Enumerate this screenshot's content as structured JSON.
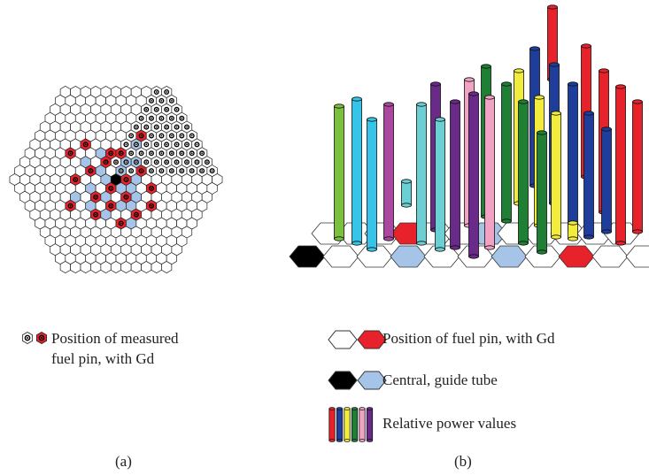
{
  "colors": {
    "red": "#e8222a",
    "blue": "#1f3e9c",
    "yellow": "#f2ec3c",
    "green": "#1e7f35",
    "pink": "#f2a3c3",
    "purple": "#6a2a8a",
    "cyan": "#36c4e8",
    "teal": "#6ccfd3",
    "lime": "#7cc040",
    "magenta": "#a9489e",
    "light_blue": "#a5c4e8",
    "black": "#000000",
    "white": "#ffffff"
  },
  "panel_a": {
    "label": "(a)",
    "legend_text_line1": "Position of measured",
    "legend_text_line2": "fuel pin, with Gd",
    "legend_icons": [
      "measured-pin-icon",
      "measured-pin-with-gd-icon"
    ]
  },
  "panel_b": {
    "label": "(b)",
    "legend": [
      {
        "icons": [
          "fuel-pin-icon",
          "fuel-pin-with-gd-icon"
        ],
        "text": "Position of fuel pin, with Gd"
      },
      {
        "icons": [
          "central-tube-icon",
          "guide-tube-icon"
        ],
        "text": "Central, guide tube"
      },
      {
        "icons": [
          "power-bars-icon"
        ],
        "text": "Relative power values"
      }
    ]
  }
}
